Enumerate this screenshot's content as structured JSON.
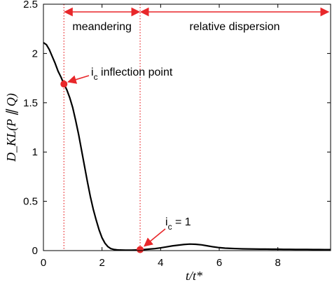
{
  "chart_data": {
    "type": "line",
    "xlabel": "t/t*",
    "ylabel": "D_KL(P ∥ Q)",
    "xlim": [
      0,
      9.8
    ],
    "ylim": [
      0,
      2.5
    ],
    "xticks": [
      0,
      2,
      4,
      6,
      8
    ],
    "yticks": [
      0,
      0.5,
      1,
      1.5,
      2,
      2.5
    ],
    "x_tick_labels": [
      "0",
      "2",
      "4",
      "6",
      "8"
    ],
    "y_tick_labels": [
      "0",
      "0.5",
      "1",
      "1.5",
      "2",
      "2.5"
    ],
    "grid": false,
    "series": [
      {
        "color": "#000000",
        "x": [
          0,
          0.1,
          0.2,
          0.3,
          0.4,
          0.5,
          0.6,
          0.7,
          0.8,
          0.9,
          1.0,
          1.1,
          1.2,
          1.3,
          1.4,
          1.5,
          1.6,
          1.7,
          1.8,
          1.9,
          2.0,
          2.1,
          2.2,
          2.3,
          2.4,
          2.5,
          2.6,
          2.8,
          3.0,
          3.2,
          3.4,
          3.6,
          3.8,
          4.0,
          4.2,
          4.4,
          4.6,
          4.8,
          5.0,
          5.2,
          5.4,
          5.6,
          5.8,
          6.0,
          6.2,
          6.4,
          6.6,
          6.8,
          7.0,
          7.2,
          7.4,
          7.6,
          7.8,
          8.0,
          8.2,
          8.4,
          8.6,
          8.8,
          9.0,
          9.2,
          9.4,
          9.6,
          9.8
        ],
        "y": [
          2.11,
          2.09,
          2.04,
          1.97,
          1.9,
          1.82,
          1.76,
          1.69,
          1.63,
          1.55,
          1.45,
          1.32,
          1.18,
          1.02,
          0.86,
          0.7,
          0.55,
          0.42,
          0.31,
          0.21,
          0.13,
          0.075,
          0.04,
          0.02,
          0.012,
          0.008,
          0.006,
          0.005,
          0.005,
          0.006,
          0.01,
          0.015,
          0.02,
          0.028,
          0.038,
          0.048,
          0.055,
          0.062,
          0.066,
          0.064,
          0.058,
          0.048,
          0.038,
          0.03,
          0.025,
          0.022,
          0.02,
          0.018,
          0.017,
          0.016,
          0.015,
          0.015,
          0.014,
          0.014,
          0.013,
          0.013,
          0.012,
          0.012,
          0.012,
          0.011,
          0.011,
          0.01,
          0.01
        ]
      }
    ],
    "vlines": [
      {
        "x": 0.7,
        "color": "#e8272a",
        "style": "dotted"
      },
      {
        "x": 3.3,
        "color": "#e8272a",
        "style": "dotted"
      }
    ],
    "points": [
      {
        "x": 0.7,
        "y": 1.69,
        "color": "#e8272a"
      },
      {
        "x": 3.3,
        "y": 0.01,
        "color": "#e8272a"
      }
    ],
    "regions": [
      {
        "label": "meandering",
        "x_start": 0.7,
        "x_end": 3.3
      },
      {
        "label": "relative dispersion",
        "x_start": 3.3,
        "x_end": 9.8
      }
    ],
    "annotations": [
      {
        "label_main": "i",
        "label_sub": "c",
        "label_rest": " inflection point",
        "target_x": 0.7,
        "target_y": 1.69
      },
      {
        "label_main": "i",
        "label_sub": "c",
        "label_rest": " = 1",
        "target_x": 3.3,
        "target_y": 0.01
      }
    ],
    "accent_color": "#e8272a"
  }
}
